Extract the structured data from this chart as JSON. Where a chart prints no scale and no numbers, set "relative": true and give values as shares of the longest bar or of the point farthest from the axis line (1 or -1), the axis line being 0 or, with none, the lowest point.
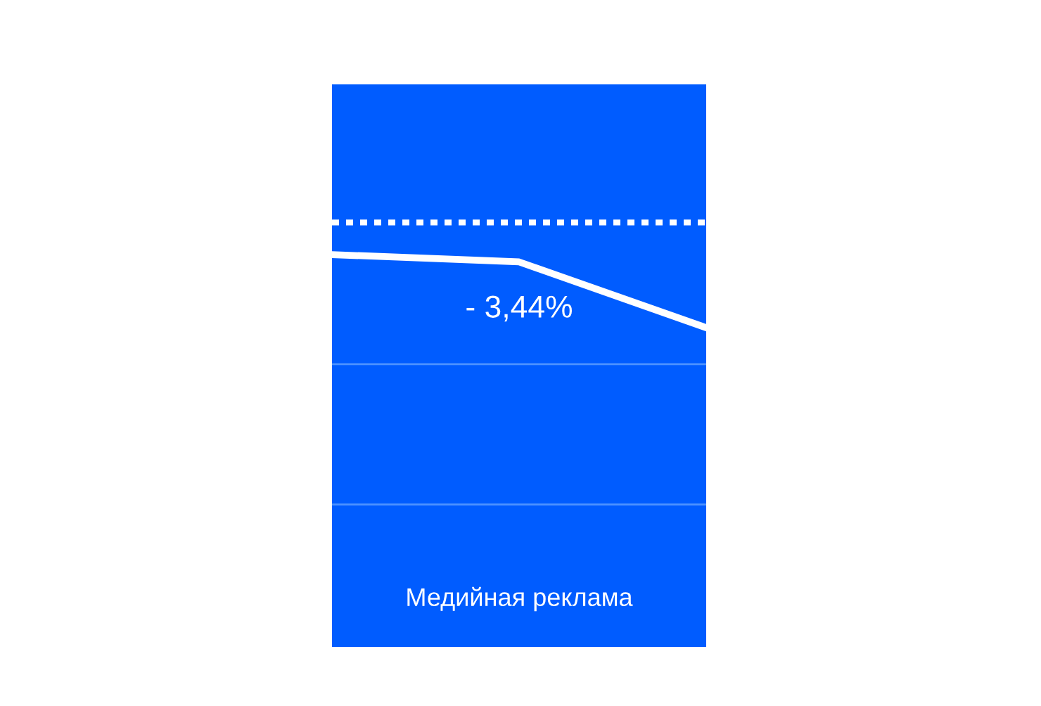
{
  "chart_data": {
    "type": "line",
    "relative": true,
    "title": "Медийная реклама",
    "categories": [
      null,
      null,
      null
    ],
    "series": [
      {
        "color": "#ffffff",
        "values": [
          1,
          0.9,
          0
        ]
      }
    ],
    "ref_lines": [
      {
        "axis": "y",
        "value": 1.44,
        "color": "#ffffff",
        "line_style": "dotted"
      },
      {
        "axis": "y",
        "value": -0.5,
        "color": "#4d92ff",
        "line_style": "solid"
      },
      {
        "axis": "y",
        "value": -2.42,
        "color": "#4d92ff",
        "line_style": "solid"
      }
    ],
    "annotations": [
      "- 3,44%"
    ],
    "marker": "none",
    "line_style": "solid",
    "legend": false
  }
}
